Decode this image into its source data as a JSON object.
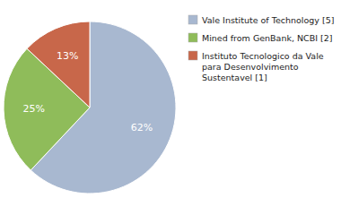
{
  "chart_data": {
    "type": "pie",
    "categories": [
      "Vale Institute of Technology [5]",
      "Mined from GenBank, NCBI [2]",
      "Instituto Tecnologico da Vale\npara Desenvolvimento\nSustentavel [1]"
    ],
    "values": [
      62,
      25,
      13
    ],
    "value_labels": [
      "62%",
      "25%",
      "13%"
    ],
    "colors": [
      "#a8b8d0",
      "#8fbc5a",
      "#c8674a"
    ],
    "data_labels": true,
    "legend": "right"
  }
}
